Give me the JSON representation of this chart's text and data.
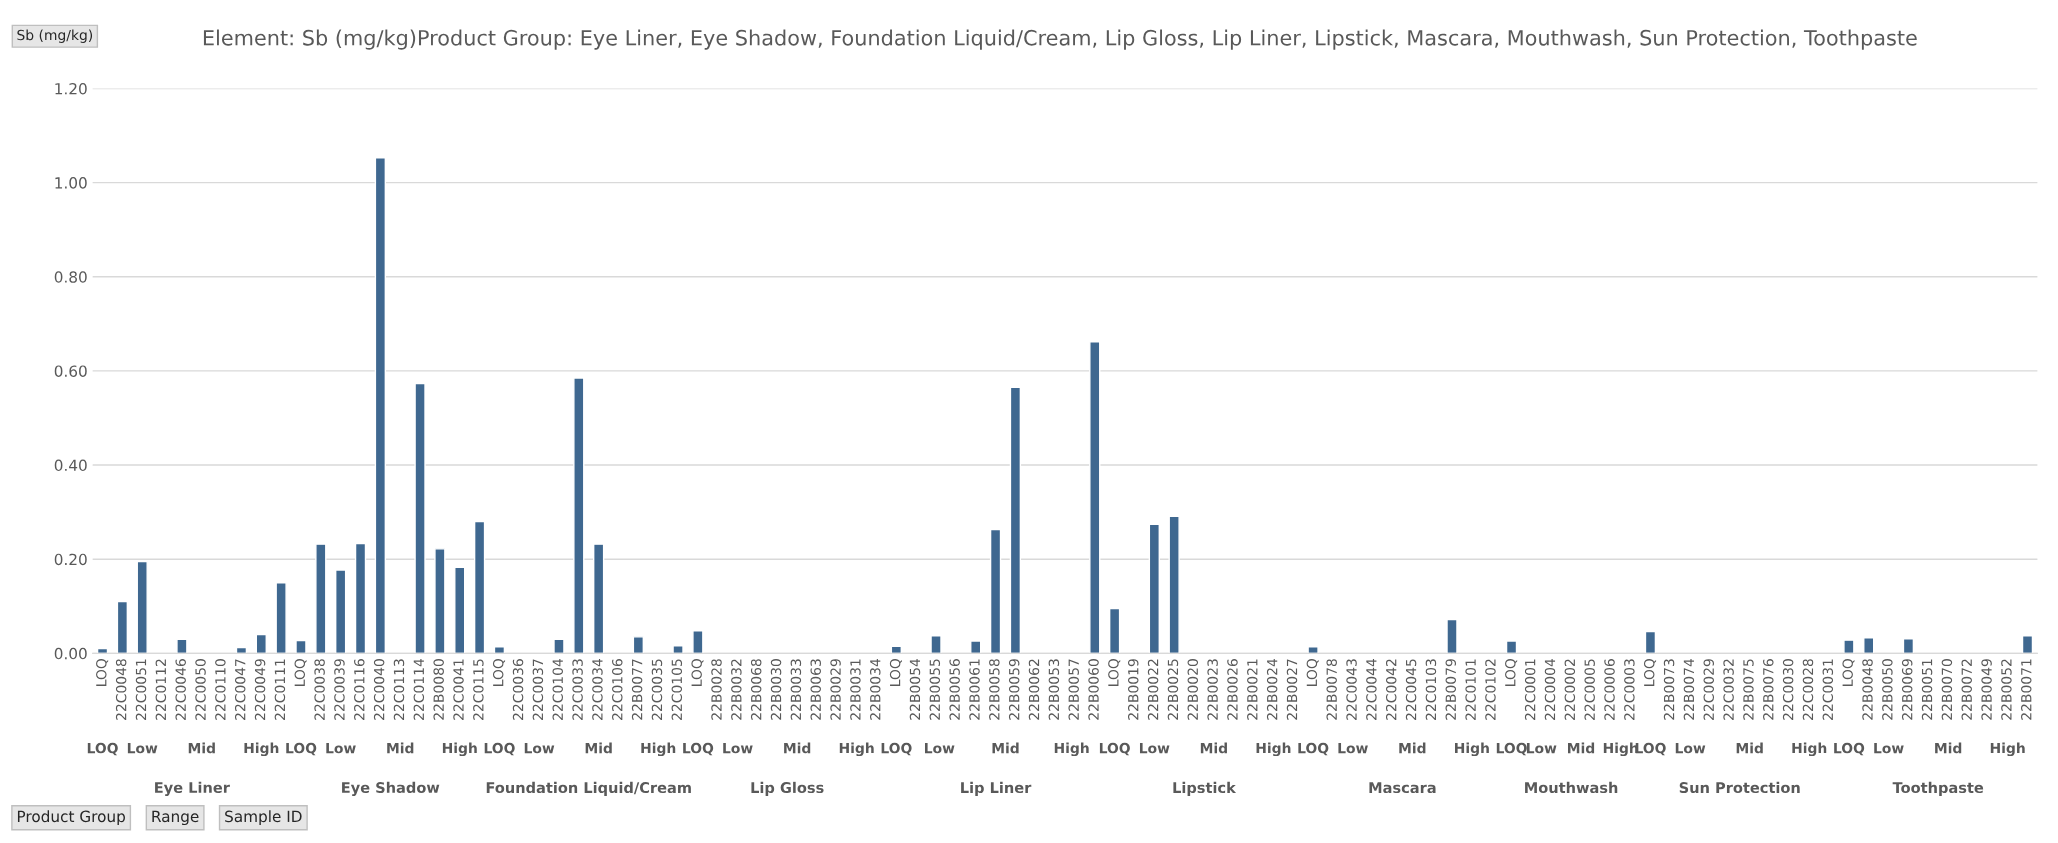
{
  "chart_data": {
    "type": "bar",
    "title": "Element: Sb (mg/kg)Product Group: Eye Liner, Eye Shadow, Foundation Liquid/Cream, Lip Gloss, Lip Liner, Lipstick, Mascara, Mouthwash, Sun Protection, Toothpaste",
    "ylabel": "Sb (mg/kg)",
    "categories": [
      "LOQ",
      "22C0048",
      "22C0051",
      "22C0112",
      "22C0046",
      "22C0050",
      "22C0110",
      "22C0047",
      "22C0049",
      "22C0111",
      "LOQ",
      "22C0038",
      "22C0039",
      "22C0116",
      "22C0040",
      "22C0113",
      "22C0114",
      "22B0080",
      "22C0041",
      "22C0115",
      "LOQ",
      "22C0036",
      "22C0037",
      "22C0104",
      "22C0033",
      "22C0034",
      "22C0106",
      "22B0077",
      "22C0035",
      "22C0105",
      "LOQ",
      "22B0028",
      "22B0032",
      "22B0068",
      "22B0030",
      "22B0033",
      "22B0063",
      "22B0029",
      "22B0031",
      "22B0034",
      "LOQ",
      "22B0054",
      "22B0055",
      "22B0056",
      "22B0061",
      "22B0058",
      "22B0059",
      "22B0062",
      "22B0053",
      "22B0057",
      "22B0060",
      "LOQ",
      "22B0019",
      "22B0022",
      "22B0025",
      "22B0020",
      "22B0023",
      "22B0026",
      "22B0021",
      "22B0024",
      "22B0027",
      "LOQ",
      "22B0078",
      "22C0043",
      "22C0044",
      "22C0042",
      "22C0045",
      "22C0103",
      "22B0079",
      "22C0101",
      "22C0102",
      "LOQ",
      "22C0001",
      "22C0004",
      "22C0002",
      "22C0005",
      "22C0006",
      "22C0003",
      "LOQ",
      "22B0073",
      "22B0074",
      "22C0029",
      "22C0032",
      "22B0075",
      "22B0076",
      "22C0030",
      "22C0028",
      "22C0031",
      "LOQ",
      "22B0048",
      "22B0050",
      "22B0069",
      "22B0051",
      "22B0070",
      "22B0072",
      "22B0049",
      "22B0052",
      "22B0071"
    ],
    "values": [
      0.01,
      0.11,
      0.195,
      null,
      0.03,
      null,
      null,
      0.012,
      0.04,
      0.15,
      0.027,
      0.232,
      0.177,
      0.233,
      1.053,
      null,
      0.573,
      0.222,
      0.183,
      0.28,
      0.014,
      null,
      null,
      0.03,
      0.585,
      0.232,
      null,
      0.035,
      null,
      0.016,
      0.048,
      null,
      null,
      null,
      null,
      null,
      null,
      null,
      null,
      null,
      0.015,
      null,
      0.037,
      null,
      0.026,
      0.263,
      0.565,
      null,
      null,
      null,
      0.662,
      0.095,
      null,
      0.274,
      0.291,
      null,
      null,
      null,
      null,
      null,
      null,
      0.014,
      null,
      null,
      null,
      null,
      null,
      null,
      0.072,
      null,
      null,
      0.026,
      null,
      null,
      null,
      null,
      null,
      null,
      0.046,
      null,
      null,
      null,
      null,
      null,
      null,
      null,
      null,
      null,
      0.028,
      0.033,
      null,
      0.031,
      null,
      null,
      null,
      null,
      null,
      0.037
    ],
    "color": "#3f6890",
    "ylim": [
      0,
      1.2
    ],
    "yticks": [
      {
        "value": 0,
        "label": "0.00"
      },
      {
        "value": 0.2,
        "label": "0.20"
      },
      {
        "value": 0.4,
        "label": "0.40"
      },
      {
        "value": 0.6,
        "label": "0.60"
      },
      {
        "value": 0.8,
        "label": "0.80"
      },
      {
        "value": 1.0,
        "label": "1.00"
      },
      {
        "value": 1.2,
        "label": "1.20"
      }
    ],
    "grid": "y",
    "annotations": [
      "LOQ",
      "Low",
      "Mid",
      "High",
      "LOQ",
      "Low",
      "Mid",
      "High",
      "LOQ",
      "Low",
      "Mid",
      "High",
      "LOQ",
      "Low",
      "Mid",
      "High",
      "LOQ",
      "Low",
      "Mid",
      "High",
      "LOQ",
      "Low",
      "Mid",
      "High",
      "LOQ",
      "Low",
      "Mid",
      "High",
      "LOQ",
      "Low",
      "Mid",
      "High",
      "LOQ",
      "Low",
      "Mid",
      "High",
      "LOQ",
      "Low",
      "Mid",
      "High",
      "Eye Liner",
      "Eye Shadow",
      "Foundation Liquid/Cream",
      "Lip Gloss",
      "Lip Liner",
      "Lipstick",
      "Mascara",
      "Mouthwash",
      "Sun Protection",
      "Toothpaste",
      "Product Group",
      "Range",
      "Sample ID"
    ]
  }
}
